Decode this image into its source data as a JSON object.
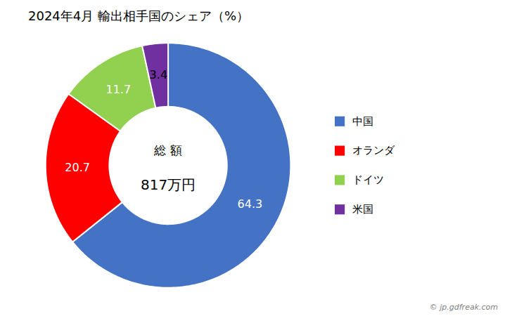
{
  "chart_data": {
    "type": "donut",
    "title": "2024年4月 輸出相手国のシェア（%）",
    "categories": [
      "中国",
      "オランダ",
      "ドイツ",
      "米国"
    ],
    "values": [
      64.3,
      20.7,
      11.7,
      3.4
    ],
    "colors": [
      "#4472C4",
      "#FF0000",
      "#92D050",
      "#7030A0"
    ],
    "data_labels": true,
    "annotations": [
      "総 額",
      "817万円"
    ],
    "caption": "© jp.gdfreak.com",
    "legend": "right"
  }
}
